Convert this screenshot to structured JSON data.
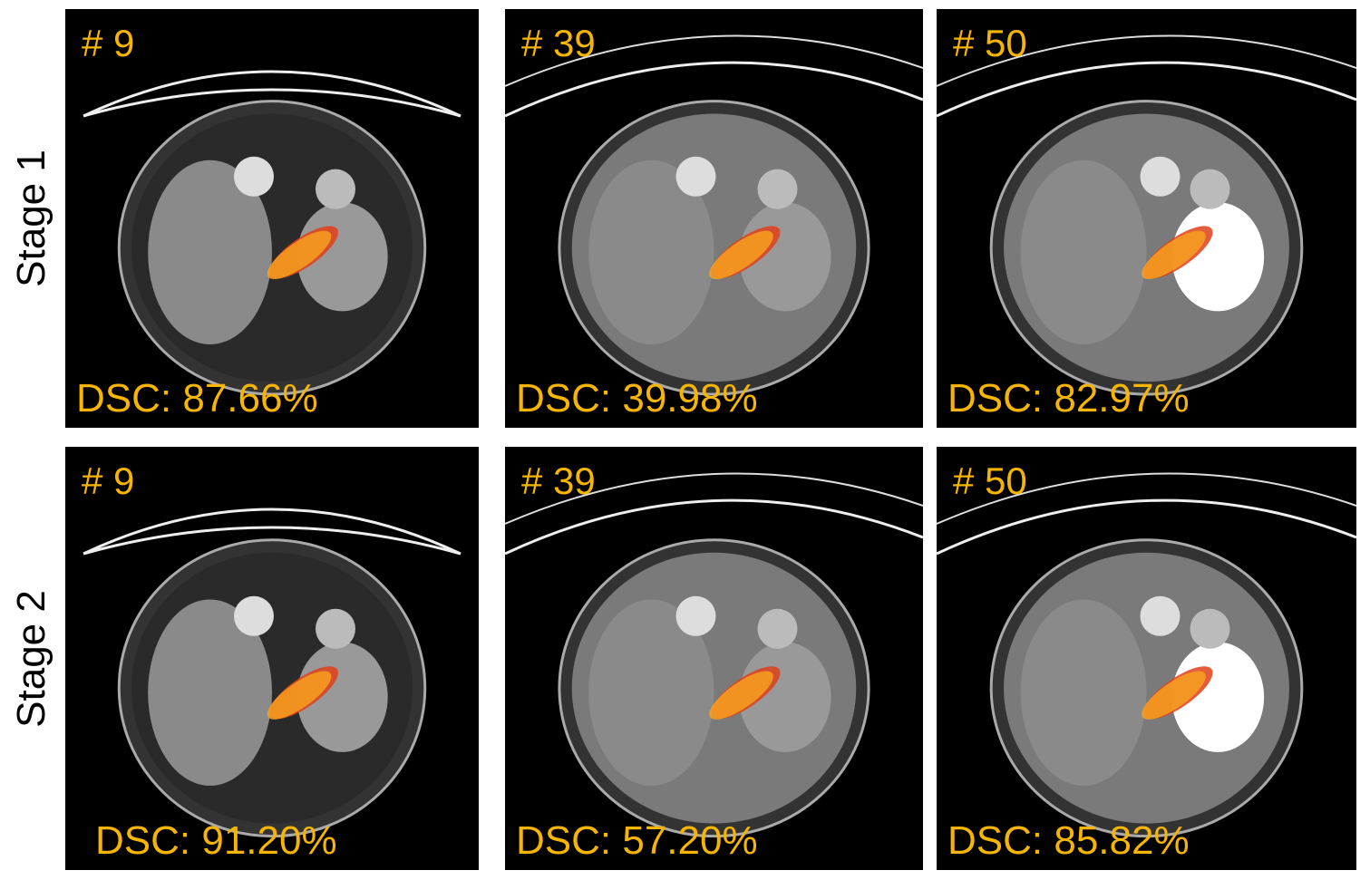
{
  "rows": [
    {
      "label": "Stage 1",
      "panels": [
        {
          "case": "# 9",
          "dsc": "DSC: 87.66%"
        },
        {
          "case": "# 39",
          "dsc": "DSC: 39.98%"
        },
        {
          "case": "# 50",
          "dsc": "DSC: 82.97%"
        }
      ]
    },
    {
      "label": "Stage 2",
      "panels": [
        {
          "case": "# 9",
          "dsc": "DSC: 91.20%"
        },
        {
          "case": "# 39",
          "dsc": "DSC: 57.20%"
        },
        {
          "case": "# 50",
          "dsc": "DSC: 85.82%"
        }
      ]
    }
  ]
}
